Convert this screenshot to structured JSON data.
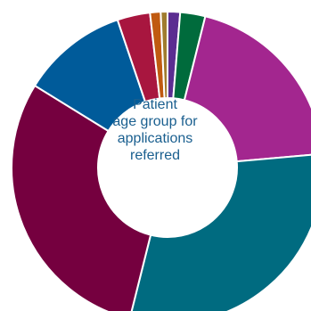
{
  "chart_data": {
    "type": "pie",
    "style": "donut",
    "center_label": [
      "Patient",
      "age group for",
      "applications",
      "referred"
    ],
    "center_label_color": "#1a5f8f",
    "slice_order": "clockwise from top",
    "slices": [
      {
        "value": 1.3,
        "color": "#5b2d91"
      },
      {
        "value": 2.6,
        "color": "#006b3c"
      },
      {
        "value": 19.7,
        "color": "#a3268f"
      },
      {
        "value": 30.3,
        "color": "#006b80"
      },
      {
        "value": 29.9,
        "color": "#75003f"
      },
      {
        "value": 11.0,
        "color": "#005b9a"
      },
      {
        "value": 3.4,
        "color": "#a8163f"
      },
      {
        "value": 1.1,
        "color": "#c05a10"
      },
      {
        "value": 0.7,
        "color": "#a07c2e"
      }
    ],
    "separator_color": "#ffffff",
    "grid": false,
    "legend": "none"
  }
}
